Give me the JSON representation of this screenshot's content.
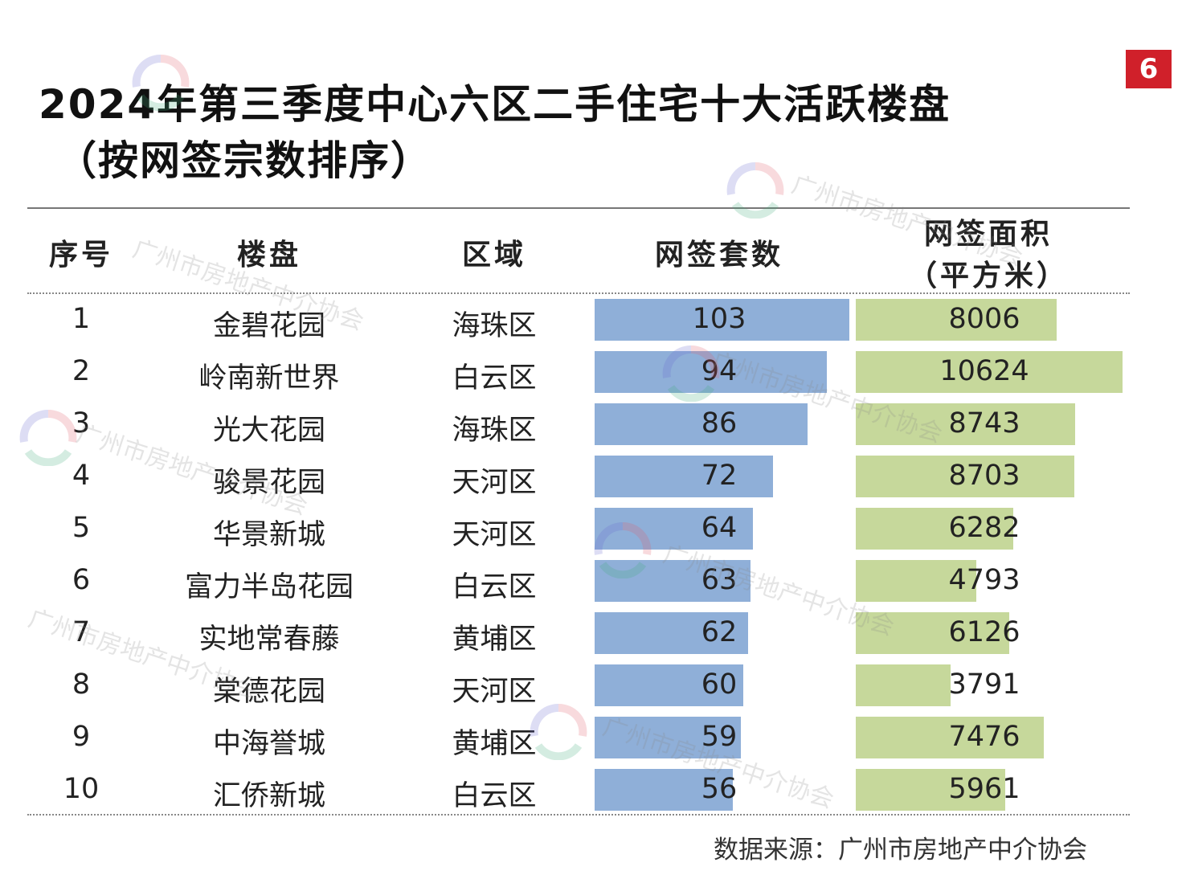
{
  "page_number": "6",
  "title": "2024年第三季度中心六区二手住宅十大活跃楼盘",
  "subtitle": "（按网签宗数排序）",
  "source": "数据来源：广州市房地产中介协会",
  "watermark": "广州市房地产中介协会",
  "colors": {
    "count_bar": "#8fafd8",
    "area_bar": "#c6d89b",
    "badge": "#d0202a"
  },
  "chart_data": {
    "type": "table",
    "columns": [
      "序号",
      "楼盘",
      "区域",
      "网签套数",
      "网签面积",
      "（平方米）"
    ],
    "rows": [
      {
        "seq": "1",
        "name": "金碧花园",
        "district": "海珠区",
        "count": 103,
        "area": 8006
      },
      {
        "seq": "2",
        "name": "岭南新世界",
        "district": "白云区",
        "count": 94,
        "area": 10624
      },
      {
        "seq": "3",
        "name": "光大花园",
        "district": "海珠区",
        "count": 86,
        "area": 8743
      },
      {
        "seq": "4",
        "name": "骏景花园",
        "district": "天河区",
        "count": 72,
        "area": 8703
      },
      {
        "seq": "5",
        "name": "华景新城",
        "district": "天河区",
        "count": 64,
        "area": 6282
      },
      {
        "seq": "6",
        "name": "富力半岛花园",
        "district": "白云区",
        "count": 63,
        "area": 4793
      },
      {
        "seq": "7",
        "name": "实地常春藤",
        "district": "黄埔区",
        "count": 62,
        "area": 6126
      },
      {
        "seq": "8",
        "name": "棠德花园",
        "district": "天河区",
        "count": 60,
        "area": 3791
      },
      {
        "seq": "9",
        "name": "中海誉城",
        "district": "黄埔区",
        "count": 59,
        "area": 7476
      },
      {
        "seq": "10",
        "name": "汇侨新城",
        "district": "白云区",
        "count": 56,
        "area": 5961
      }
    ]
  }
}
